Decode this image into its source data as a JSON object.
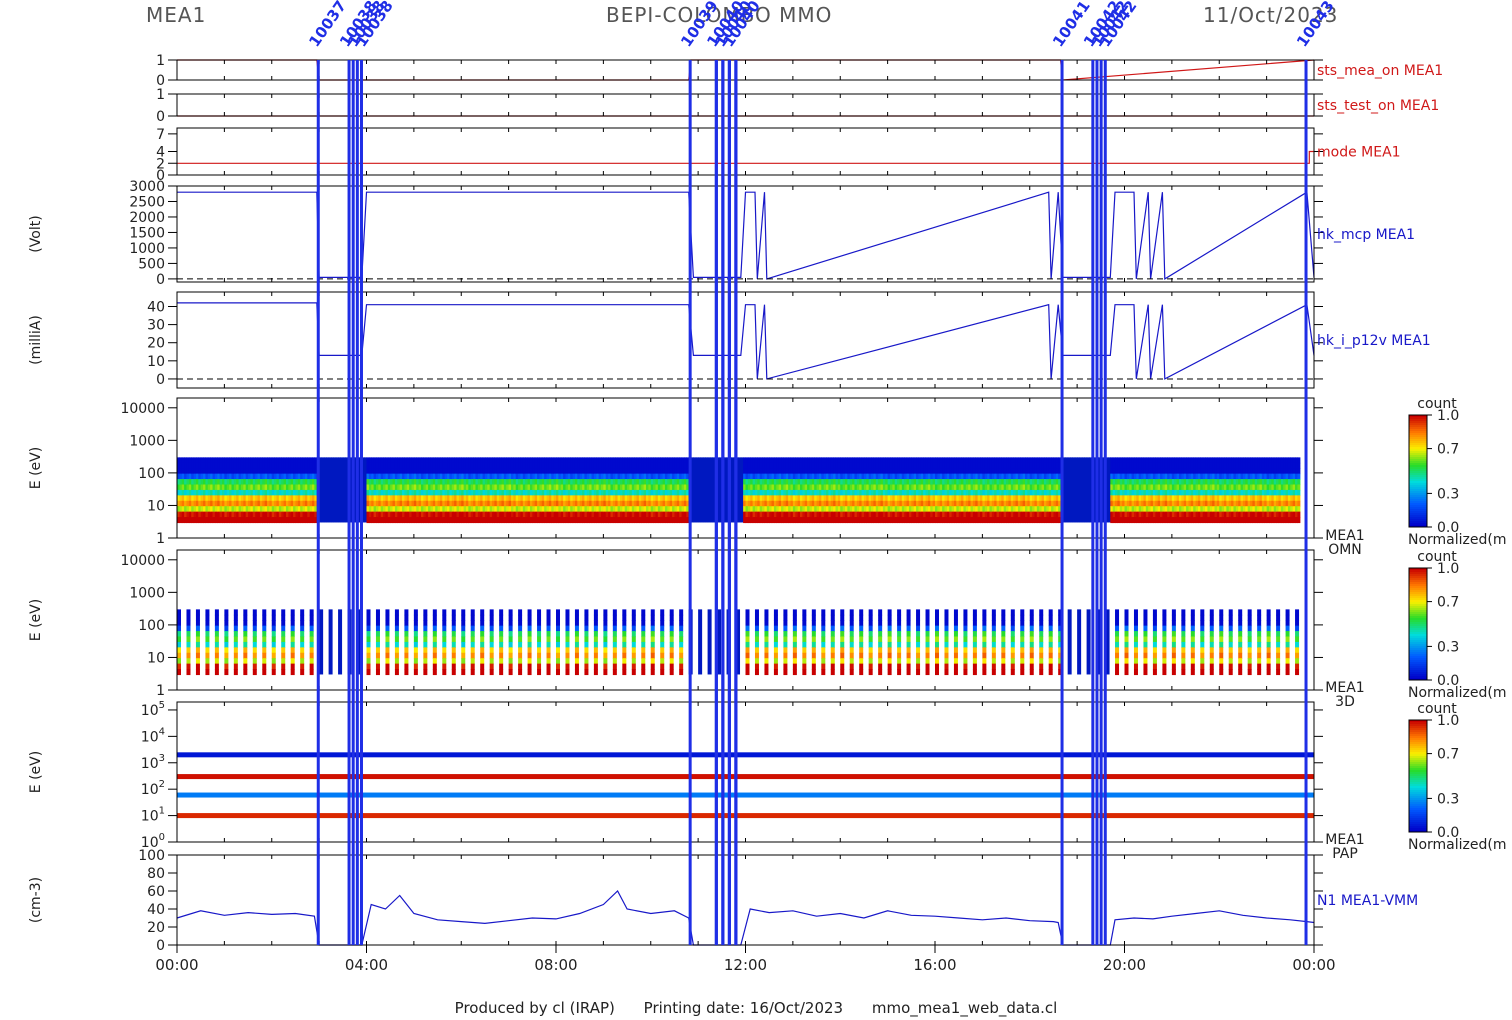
{
  "header": {
    "instrument": "MEA1",
    "mission": "BEPI-COLOMBO MMO",
    "date": "11/Oct/2023"
  },
  "footer": {
    "produced_by": "Produced by cl (IRAP)",
    "printing_date": "Printing date: 16/Oct/2023",
    "script": "mmo_mea1_web_data.cl"
  },
  "colors": {
    "status_line": "#d01818",
    "data_line": "#1818c8",
    "event_marker": "#1f2ee6",
    "frame": "#000000"
  },
  "chart_data": {
    "type": "line",
    "x_axis": {
      "label": "",
      "range_hours": [
        0,
        24
      ],
      "ticks": [
        "00:00",
        "04:00",
        "08:00",
        "12:00",
        "16:00",
        "20:00",
        "00:00"
      ]
    },
    "event_markers": [
      {
        "label": "10037",
        "start_hour": 2.95,
        "end_hour": 3.0
      },
      {
        "label": "10038",
        "start_hour": 3.6,
        "end_hour": 3.95
      },
      {
        "label": "10039",
        "start_hour": 10.8,
        "end_hour": 10.85
      },
      {
        "label": "10040",
        "start_hour": 11.35,
        "end_hour": 11.9
      },
      {
        "label": "10041",
        "start_hour": 18.65,
        "end_hour": 18.7
      },
      {
        "label": "10042",
        "start_hour": 19.3,
        "end_hour": 19.65
      },
      {
        "label": "10043",
        "start_hour": 23.8,
        "end_hour": 23.85
      }
    ],
    "panels": [
      {
        "name": "sts_mea_on MEA1",
        "ylabel": "",
        "yticks": [
          "0",
          "1"
        ],
        "y_range": [
          0,
          1
        ],
        "series_color": "#d01818",
        "x": [
          0,
          2.95,
          3.0,
          10.8,
          10.85,
          18.65,
          18.7,
          24
        ],
        "y": [
          1,
          1,
          0,
          0,
          1,
          1,
          0,
          1
        ]
      },
      {
        "name": "sts_test_on MEA1",
        "ylabel": "",
        "yticks": [
          "0",
          "1"
        ],
        "y_range": [
          0,
          1
        ],
        "series_color": "#d01818",
        "x": [
          0,
          24
        ],
        "y": [
          0,
          0
        ]
      },
      {
        "name": "mode MEA1",
        "ylabel": "",
        "yticks": [
          "0",
          "2",
          "4",
          "7"
        ],
        "y_range": [
          0,
          8
        ],
        "series_color": "#d01818",
        "x": [
          0,
          23.9,
          23.9,
          24
        ],
        "y": [
          2,
          2,
          4,
          4
        ]
      },
      {
        "name": "hk_mcp MEA1",
        "ylabel": "(Volt)",
        "yticks": [
          "0",
          "500",
          "1000",
          "1500",
          "2000",
          "2500",
          "3000"
        ],
        "y_range": [
          -100,
          3000
        ],
        "series_color": "#1818c8",
        "x": [
          0,
          2.95,
          3.0,
          3.9,
          4.0,
          10.8,
          10.9,
          11.9,
          12.0,
          12.2,
          12.25,
          12.4,
          12.45,
          18.4,
          18.45,
          18.6,
          18.7,
          19.7,
          19.8,
          20.2,
          20.25,
          20.5,
          20.55,
          20.8,
          20.85,
          23.85,
          24
        ],
        "y": [
          2800,
          2800,
          50,
          50,
          2800,
          2800,
          50,
          50,
          2800,
          2800,
          0,
          2800,
          0,
          2800,
          0,
          2800,
          50,
          50,
          2800,
          2800,
          0,
          2800,
          0,
          2800,
          0,
          2800,
          50
        ],
        "reference_line": 0
      },
      {
        "name": "hk_i_p12v MEA1",
        "ylabel": "(milliA)",
        "yticks": [
          "0",
          "10",
          "20",
          "30",
          "40"
        ],
        "y_range": [
          -5,
          48
        ],
        "series_color": "#1818c8",
        "x": [
          0,
          2.95,
          3.0,
          3.9,
          4.0,
          10.8,
          10.9,
          11.9,
          12.0,
          12.2,
          12.25,
          12.4,
          12.45,
          18.4,
          18.45,
          18.6,
          18.7,
          19.7,
          19.8,
          20.2,
          20.25,
          20.5,
          20.55,
          20.8,
          20.85,
          23.85,
          24
        ],
        "y": [
          42,
          42,
          13,
          13,
          41,
          41,
          13,
          13,
          41,
          41,
          0,
          41,
          0,
          41,
          0,
          41,
          13,
          13,
          41,
          41,
          0,
          41,
          0,
          41,
          0,
          41,
          13
        ],
        "reference_line": 0
      },
      {
        "name": "MEA1 OMN",
        "ylabel": "E (eV)",
        "yticks": [
          "1",
          "10",
          "100",
          "1000",
          "10000"
        ],
        "y_scale": "log",
        "y_range": [
          1,
          20000
        ],
        "spectrogram": true,
        "energy_range_ev": [
          3,
          300
        ],
        "colorbar": {
          "title": "count",
          "label": "Normalized(m",
          "ticks": [
            "0.0",
            "0.3",
            "0.7",
            "1.0"
          ]
        }
      },
      {
        "name": "MEA1 3D",
        "ylabel": "E (eV)",
        "yticks": [
          "1",
          "10",
          "100",
          "1000",
          "10000"
        ],
        "y_scale": "log",
        "y_range": [
          1,
          20000
        ],
        "spectrogram": true,
        "striped": true,
        "energy_range_ev": [
          3,
          300
        ],
        "colorbar": {
          "title": "count",
          "label": "Normalized(m",
          "ticks": [
            "0.0",
            "0.3",
            "0.7",
            "1.0"
          ]
        }
      },
      {
        "name": "MEA1 PAP",
        "ylabel": "E (eV)",
        "yticks": [
          "10",
          "10",
          "10",
          "10",
          "10",
          "10"
        ],
        "ytick_exponents": [
          "0",
          "1",
          "2",
          "3",
          "4",
          "5"
        ],
        "y_scale": "log",
        "y_range": [
          1,
          200000
        ],
        "bands": [
          {
            "energy_ev": 2000,
            "level": 0.05
          },
          {
            "energy_ev": 300,
            "level": 0.98
          },
          {
            "energy_ev": 60,
            "level": 0.25
          },
          {
            "energy_ev": 10,
            "level": 0.95
          }
        ],
        "colorbar": {
          "title": "count",
          "label": "Normalized(m",
          "ticks": [
            "0.0",
            "0.3",
            "0.7",
            "1.0"
          ]
        }
      },
      {
        "name": "N1 MEA1-VMM",
        "ylabel": "(cm-3)",
        "yticks": [
          "0",
          "20",
          "40",
          "60",
          "80",
          "100"
        ],
        "y_range": [
          0,
          100
        ],
        "series_color": "#1818c8",
        "x": [
          0,
          0.5,
          1,
          1.5,
          2,
          2.5,
          2.9,
          3.0,
          3.9,
          4.1,
          4.4,
          4.7,
          5.0,
          5.5,
          6,
          6.5,
          7,
          7.5,
          8,
          8.5,
          9.0,
          9.3,
          9.5,
          10,
          10.5,
          10.8,
          10.9,
          11.9,
          12.1,
          12.5,
          13,
          13.5,
          14,
          14.5,
          15,
          15.5,
          16,
          16.5,
          17,
          17.5,
          18,
          18.5,
          18.6,
          18.7,
          19.7,
          19.8,
          20.2,
          20.6,
          21,
          21.5,
          22,
          22.5,
          23,
          23.5,
          23.85,
          24
        ],
        "y": [
          30,
          38,
          33,
          36,
          34,
          35,
          32,
          0,
          0,
          45,
          40,
          55,
          35,
          28,
          26,
          24,
          27,
          30,
          29,
          35,
          45,
          60,
          40,
          35,
          38,
          30,
          0,
          0,
          40,
          36,
          38,
          32,
          35,
          30,
          38,
          33,
          32,
          30,
          28,
          30,
          27,
          26,
          25,
          0,
          0,
          28,
          30,
          29,
          32,
          35,
          38,
          33,
          30,
          28,
          26,
          25
        ]
      }
    ]
  }
}
